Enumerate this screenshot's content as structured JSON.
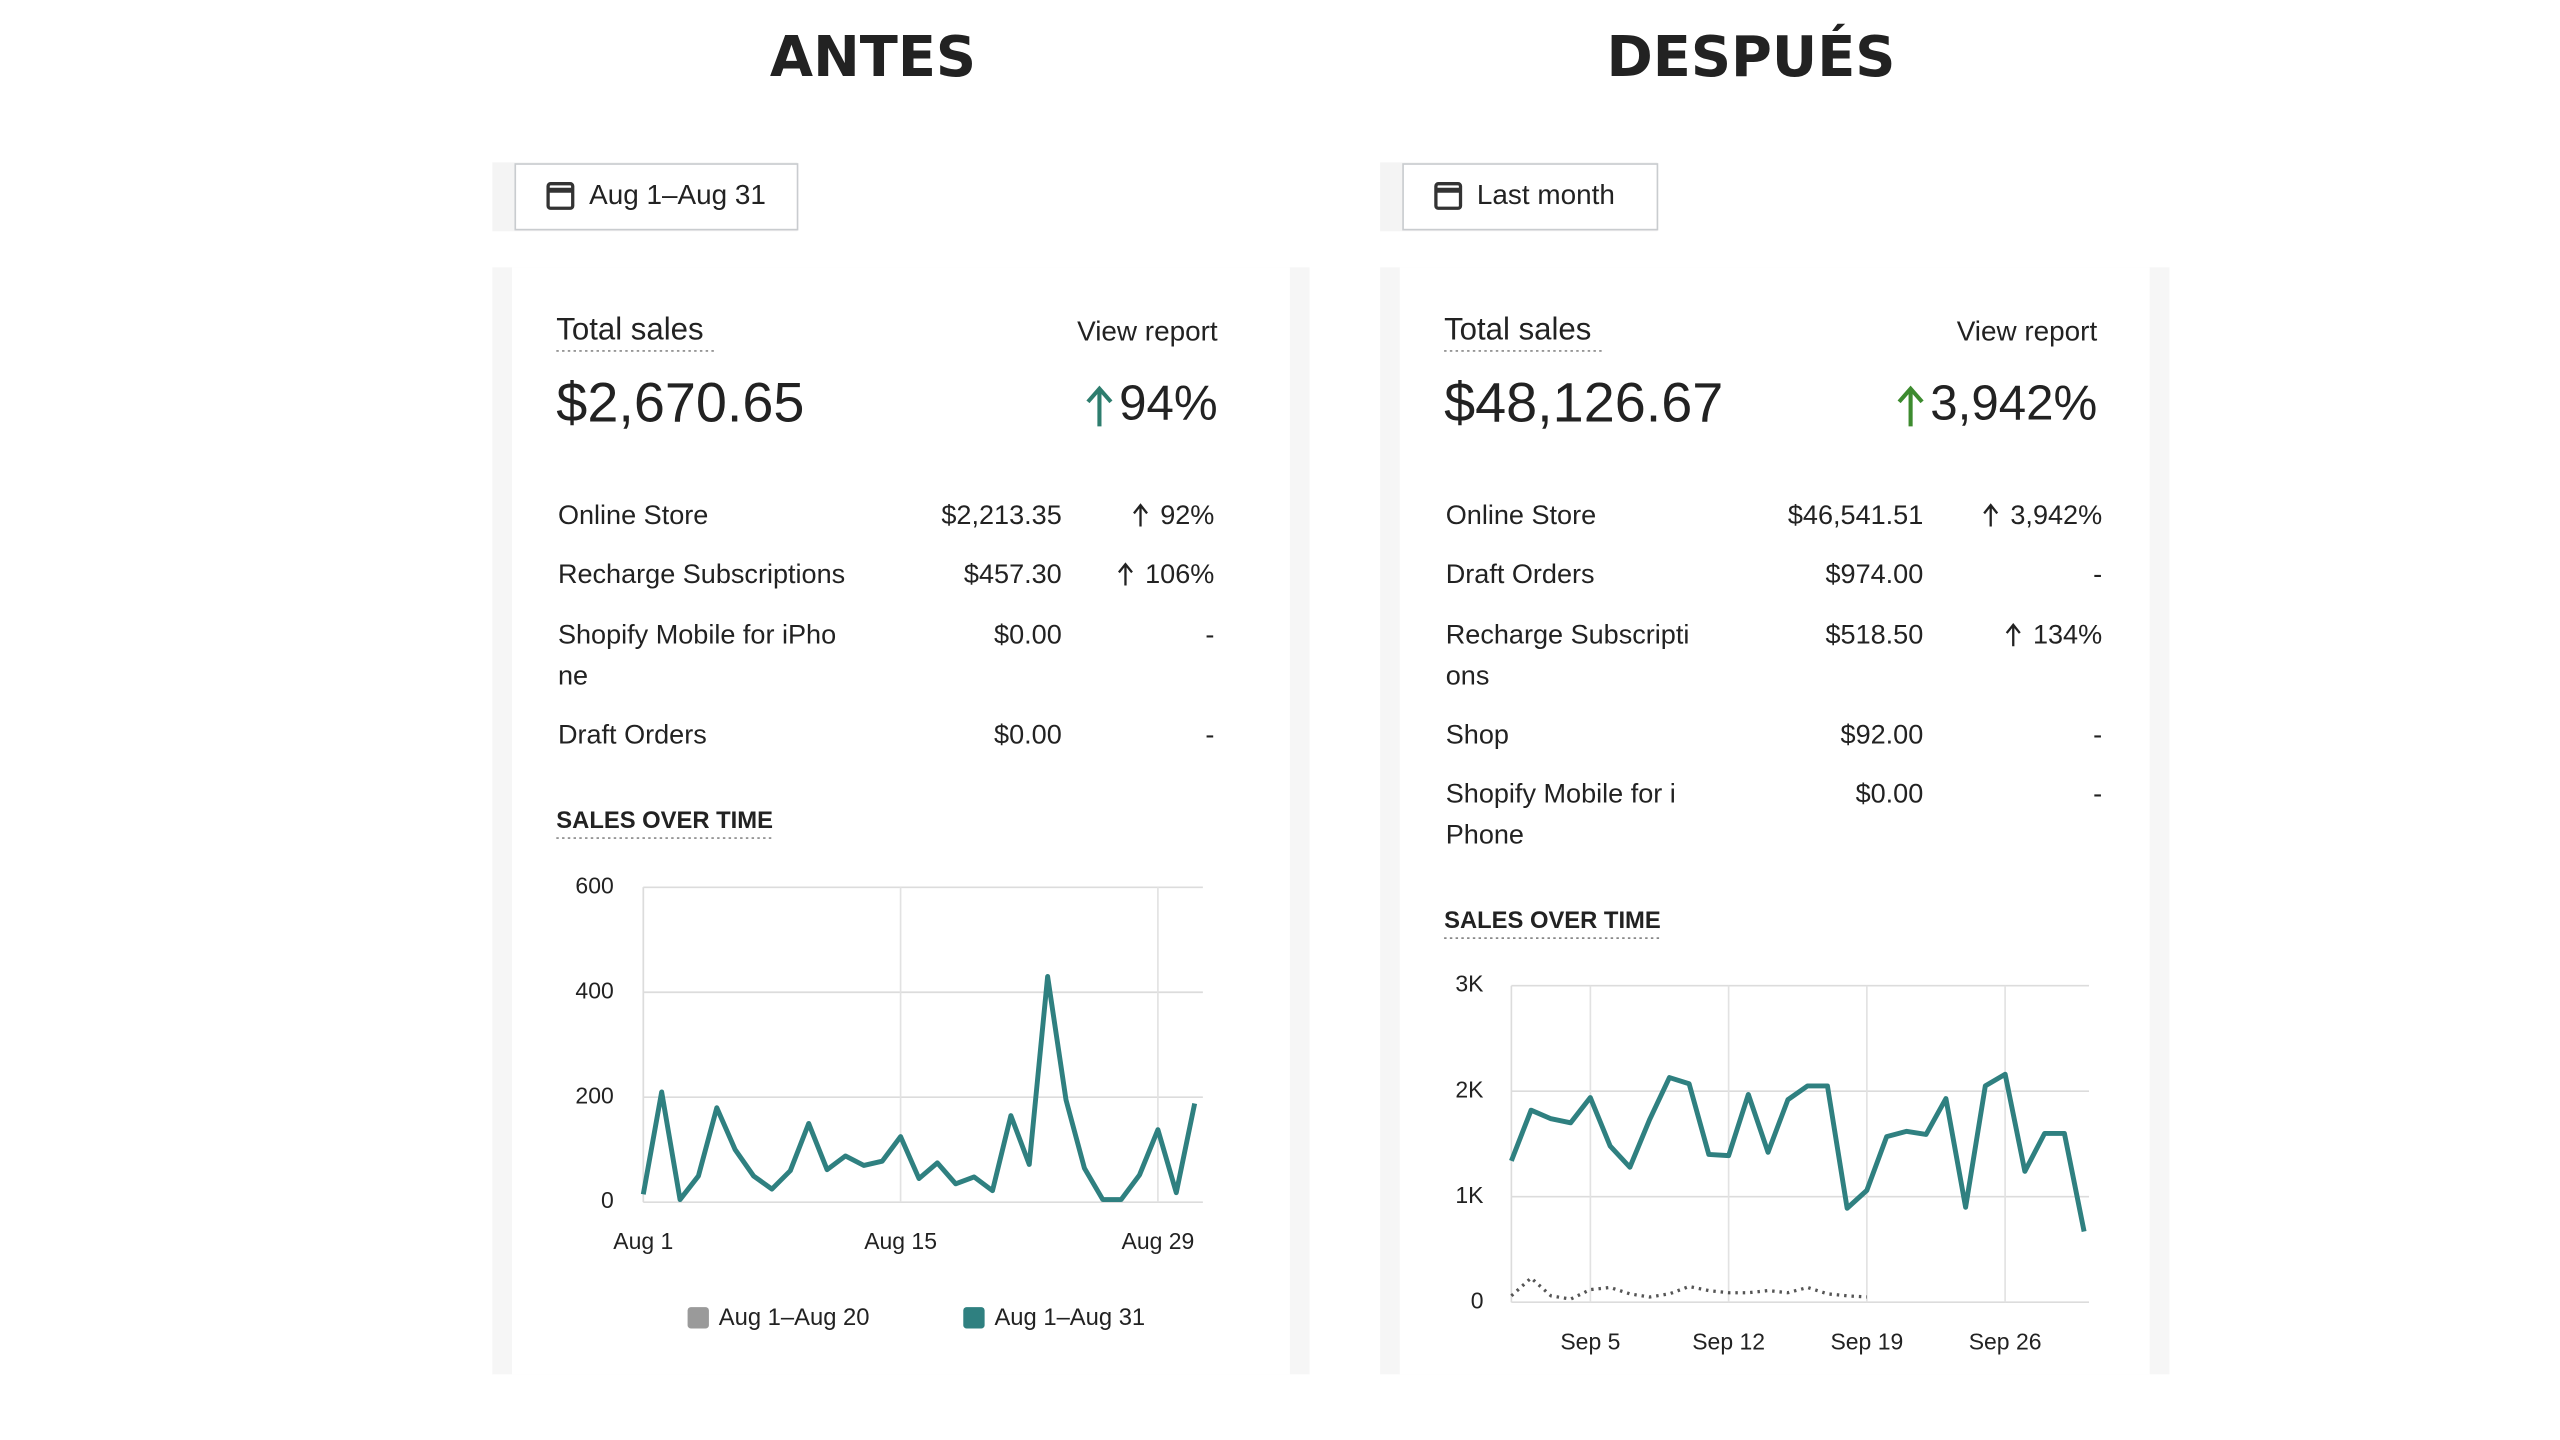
{
  "panels": [
    {
      "heading": "ANTES",
      "date_range": "Aug 1–Aug 31",
      "card": {
        "title": "Total sales",
        "link": "View report",
        "total": "$2,670.65",
        "change": "94%",
        "change_up": true,
        "change_color": "#2e7d6e"
      },
      "rows": [
        {
          "name": [
            "Online Store"
          ],
          "value": "$2,213.35",
          "change": "92%",
          "up": true
        },
        {
          "name": [
            "Recharge Subscriptions"
          ],
          "value": "$457.30",
          "change": "106%",
          "up": true
        },
        {
          "name": [
            "Shopify Mobile for iPho",
            "ne"
          ],
          "value": "$0.00",
          "change": "-",
          "up": false
        },
        {
          "name": [
            "Draft Orders"
          ],
          "value": "$0.00",
          "change": "-",
          "up": false
        }
      ],
      "chart": {
        "type": "line",
        "title": "SALES OVER TIME",
        "x": [
          1,
          2,
          3,
          4,
          5,
          6,
          7,
          8,
          9,
          10,
          11,
          12,
          13,
          14,
          15,
          16,
          17,
          18,
          19,
          20,
          21,
          22,
          23,
          24,
          25,
          26,
          27,
          28,
          29,
          30,
          31
        ],
        "xlim": [
          1,
          31
        ],
        "xticks": [
          {
            "value": 1,
            "label": "Aug 1"
          },
          {
            "value": 15,
            "label": "Aug 15"
          },
          {
            "value": 29,
            "label": "Aug 29"
          }
        ],
        "ylim": [
          0,
          600
        ],
        "yticks": [
          0,
          200,
          400,
          600
        ],
        "grid": true,
        "series": [
          {
            "color": "#2f8080",
            "dotted": false,
            "values": [
              15,
              210,
              5,
              50,
              180,
              100,
              50,
              25,
              60,
              150,
              62,
              88,
              70,
              78,
              125,
              45,
              75,
              35,
              48,
              22,
              165,
              72,
              430,
              195,
              65,
              5,
              5,
              52,
              138,
              18,
              188
            ]
          }
        ],
        "legend": [
          {
            "name": "Aug 1–Aug 20",
            "color": "#9a9a9a"
          },
          {
            "name": "Aug 1–Aug 31",
            "color": "#2f8080"
          }
        ]
      }
    },
    {
      "heading": "DESPUÉS",
      "date_range": "Last month",
      "card": {
        "title": "Total sales",
        "link": "View report",
        "total": "$48,126.67",
        "change": "3,942%",
        "change_up": true,
        "change_color": "#3d8b2f"
      },
      "rows": [
        {
          "name": [
            "Online Store"
          ],
          "value": "$46,541.51",
          "change": "3,942%",
          "up": true
        },
        {
          "name": [
            "Draft Orders"
          ],
          "value": "$974.00",
          "change": "-",
          "up": false
        },
        {
          "name": [
            "Recharge Subscripti",
            "ons"
          ],
          "value": "$518.50",
          "change": "134%",
          "up": true
        },
        {
          "name": [
            "Shop"
          ],
          "value": "$92.00",
          "change": "-",
          "up": false
        },
        {
          "name": [
            "Shopify Mobile for i",
            "Phone"
          ],
          "value": "$0.00",
          "change": "-",
          "up": false
        }
      ],
      "chart": {
        "type": "line",
        "title": "SALES OVER TIME",
        "x": [
          1,
          2,
          3,
          4,
          5,
          6,
          7,
          8,
          9,
          10,
          11,
          12,
          13,
          14,
          15,
          16,
          17,
          18,
          19,
          20,
          21,
          22,
          23,
          24,
          25,
          26,
          27,
          28,
          29,
          30
        ],
        "xlim": [
          1,
          30
        ],
        "xticks": [
          {
            "value": 5,
            "label": "Sep 5"
          },
          {
            "value": 12,
            "label": "Sep 12"
          },
          {
            "value": 19,
            "label": "Sep 19"
          },
          {
            "value": 26,
            "label": "Sep 26"
          }
        ],
        "ylim": [
          0,
          3000
        ],
        "yticks": [
          0,
          {
            "value": 1000,
            "label": "1K"
          },
          {
            "value": 2000,
            "label": "2K"
          },
          {
            "value": 3000,
            "label": "3K"
          }
        ],
        "grid": true,
        "series": [
          {
            "color": "#2f8080",
            "dotted": false,
            "values": [
              1340,
              1820,
              1740,
              1700,
              1940,
              1480,
              1280,
              1730,
              2130,
              2070,
              1400,
              1390,
              1970,
              1420,
              1920,
              2050,
              2050,
              890,
              1060,
              1570,
              1620,
              1590,
              1930,
              900,
              2050,
              2160,
              1240,
              1600,
              1600,
              670
            ]
          },
          {
            "color": "#555555",
            "dotted": true,
            "values": [
              60,
              230,
              60,
              30,
              120,
              140,
              80,
              50,
              80,
              150,
              110,
              90,
              90,
              110,
              90,
              140,
              80,
              60,
              50,
              null,
              null,
              null,
              null,
              null,
              null,
              null,
              null,
              null,
              null,
              null
            ]
          }
        ],
        "legend": []
      }
    }
  ]
}
